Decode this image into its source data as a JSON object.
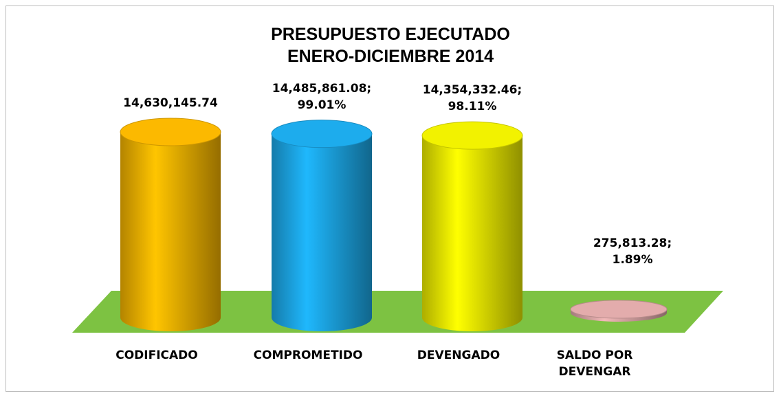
{
  "chart_data": {
    "type": "bar",
    "title": [
      "PRESUPUESTO EJECUTADO",
      "ENERO-DICIEMBRE 2014"
    ],
    "categories": [
      "CODIFICADO",
      "COMPROMETIDO",
      "DEVENGADO",
      "SALDO POR DEVENGAR"
    ],
    "values": [
      14630145.74,
      14485861.08,
      14354332.46,
      275813.28
    ],
    "value_labels": [
      "14,630,145.74",
      "14,485,861.08; 99.01%",
      "14,354,332.46; 98.11%",
      "275,813.28; 1.89%"
    ],
    "colors": [
      "#f0b000",
      "#1ca4e2",
      "#e6e600",
      "#d8a4a4"
    ],
    "floor_color": "#7dc242"
  }
}
